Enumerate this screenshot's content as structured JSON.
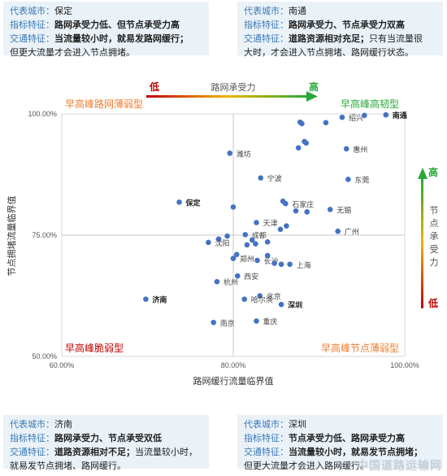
{
  "cards": [
    {
      "id": "card-tl",
      "city_label": "代表城市：",
      "city": "保定",
      "feature_label": "指标特征：",
      "feature": "路网承受力低、但节点承受力高",
      "traffic_label": "交通特征：",
      "traffic_bold": "当流量较小时，就易发路网缓行；",
      "traffic_line2": "但更大流量才会进入节点拥堵。"
    },
    {
      "id": "card-tr",
      "city_label": "代表城市：",
      "city": "南通",
      "feature_label": "指标特征：",
      "feature": "路网承受力、节点承受力双高",
      "traffic_label": "交通特征：",
      "traffic_bold": "道路资源相对充足；",
      "traffic_rest": "只有当流量很",
      "traffic_line2": "大时，才会进入节点拥堵、路网缓行状态。"
    },
    {
      "id": "card-bl",
      "city_label": "代表城市：",
      "city": "济南",
      "feature_label": "指标特征：",
      "feature": "路网承受力、节点承受双低",
      "traffic_label": "交通特征：",
      "traffic_bold": "道路资源相对不足；",
      "traffic_rest": "当流量较小时，",
      "traffic_line2": "就易发节点拥堵、路网缓行。"
    },
    {
      "id": "card-br",
      "city_label": "代表城市：",
      "city": "深圳",
      "feature_label": "指标特征：",
      "feature": "节点承受力低、路网承受力高",
      "traffic_label": "交通特征：",
      "traffic_bold": "当流量较小时，就易发节点拥堵；",
      "traffic_line2": "但更大流量才会进入路网缓行。"
    }
  ],
  "top_scale": {
    "low": "低",
    "label": "路网承受力",
    "high": "高"
  },
  "side_scale": {
    "high": "高",
    "label": "节点承受力",
    "low": "低"
  },
  "quadrants": {
    "top_left": "早高峰路网薄弱型",
    "top_right": "早高峰高韧型",
    "bottom_left": "早高峰脆弱型",
    "bottom_right": "早高峰节点薄弱型"
  },
  "colors": {
    "low": "#c00000",
    "high": "#2aa83a",
    "point": "#4472c4",
    "divider": "#c9c9c9",
    "quad_orange": "#ed7d31",
    "quad_green": "#2aa83a",
    "quad_red": "#c00000"
  },
  "watermark": "中国道路运输网",
  "chart_data": {
    "type": "scatter",
    "xlabel": "路网缓行流量临界值",
    "ylabel": "节点拥堵流量临界值",
    "xlim": [
      0.6,
      1.0
    ],
    "ylim": [
      0.5,
      1.0
    ],
    "x_ticks": [
      "60.00%",
      "80.00%",
      "100.00%"
    ],
    "y_ticks": [
      "100.00%",
      "75.00%",
      "50.00%"
    ],
    "divider": {
      "x": 0.8,
      "y": 0.75
    },
    "points": [
      {
        "x": 0.978,
        "y": 0.998,
        "label": "南通",
        "bold": true
      },
      {
        "x": 0.927,
        "y": 0.993,
        "label": "绍兴"
      },
      {
        "x": 0.953,
        "y": 0.997
      },
      {
        "x": 0.908,
        "y": 0.982
      },
      {
        "x": 0.878,
        "y": 0.983
      },
      {
        "x": 0.88,
        "y": 0.98
      },
      {
        "x": 0.883,
        "y": 0.943
      },
      {
        "x": 0.885,
        "y": 0.94
      },
      {
        "x": 0.876,
        "y": 0.93
      },
      {
        "x": 0.932,
        "y": 0.928,
        "label": "惠州"
      },
      {
        "x": 0.796,
        "y": 0.919,
        "label": "潍坊"
      },
      {
        "x": 0.832,
        "y": 0.868,
        "label": "宁波"
      },
      {
        "x": 0.934,
        "y": 0.865,
        "label": "东莞"
      },
      {
        "x": 0.737,
        "y": 0.818,
        "label": "保定",
        "bold": true
      },
      {
        "x": 0.858,
        "y": 0.82
      },
      {
        "x": 0.861,
        "y": 0.815,
        "label": "石家庄"
      },
      {
        "x": 0.8,
        "y": 0.808
      },
      {
        "x": 0.873,
        "y": 0.8
      },
      {
        "x": 0.886,
        "y": 0.798
      },
      {
        "x": 0.913,
        "y": 0.803,
        "label": "无锡"
      },
      {
        "x": 0.827,
        "y": 0.776,
        "label": "天津"
      },
      {
        "x": 0.862,
        "y": 0.769
      },
      {
        "x": 0.855,
        "y": 0.762
      },
      {
        "x": 0.922,
        "y": 0.758,
        "label": "广州"
      },
      {
        "x": 0.814,
        "y": 0.751,
        "label": "成都"
      },
      {
        "x": 0.793,
        "y": 0.748
      },
      {
        "x": 0.783,
        "y": 0.742
      },
      {
        "x": 0.822,
        "y": 0.74
      },
      {
        "x": 0.84,
        "y": 0.736
      },
      {
        "x": 0.771,
        "y": 0.735,
        "label": "沈阳"
      },
      {
        "x": 0.826,
        "y": 0.732
      },
      {
        "x": 0.816,
        "y": 0.73
      },
      {
        "x": 0.804,
        "y": 0.71
      },
      {
        "x": 0.8,
        "y": 0.702,
        "label": "郑州"
      },
      {
        "x": 0.84,
        "y": 0.708
      },
      {
        "x": 0.828,
        "y": 0.698,
        "label": "长沙"
      },
      {
        "x": 0.848,
        "y": 0.692
      },
      {
        "x": 0.856,
        "y": 0.69
      },
      {
        "x": 0.866,
        "y": 0.69,
        "label": "上海"
      },
      {
        "x": 0.805,
        "y": 0.666,
        "label": "西安"
      },
      {
        "x": 0.781,
        "y": 0.654,
        "label": "杭州"
      },
      {
        "x": 0.831,
        "y": 0.625,
        "label": "北京"
      },
      {
        "x": 0.698,
        "y": 0.618,
        "label": "济南",
        "bold": true
      },
      {
        "x": 0.813,
        "y": 0.618,
        "label": "哈尔滨"
      },
      {
        "x": 0.856,
        "y": 0.607,
        "label": "深圳",
        "bold": true
      },
      {
        "x": 0.777,
        "y": 0.57,
        "label": "南京"
      },
      {
        "x": 0.827,
        "y": 0.573,
        "label": "重庆"
      }
    ]
  }
}
